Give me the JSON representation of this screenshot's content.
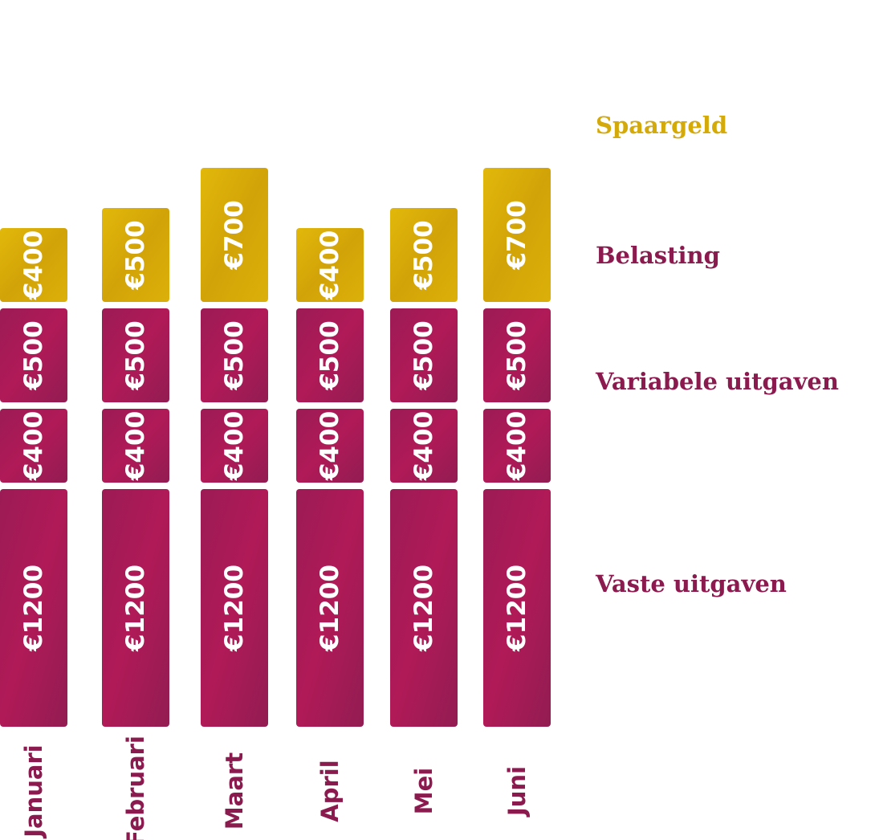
{
  "chart_data": {
    "type": "bar",
    "stacked": true,
    "orientation": "vertical",
    "categories": [
      "Januari",
      "Februari",
      "Maart",
      "April",
      "Mei",
      "Juni"
    ],
    "currency_symbol": "€",
    "series": [
      {
        "name": "Vaste uitgaven",
        "values": [
          1200,
          1200,
          1200,
          1200,
          1200,
          1200
        ],
        "color": "#a01a52"
      },
      {
        "name": "Variabele uitgaven",
        "values": [
          400,
          400,
          400,
          400,
          400,
          400
        ],
        "color": "#a01a52"
      },
      {
        "name": "Belasting",
        "values": [
          500,
          500,
          500,
          500,
          500,
          500
        ],
        "color": "#a01a52"
      },
      {
        "name": "Spaargeld",
        "values": [
          400,
          500,
          700,
          400,
          500,
          700
        ],
        "color": "#d6ad08"
      }
    ],
    "legend_colors": {
      "Spaargeld": "#d4a90a",
      "Belasting": "#8b1a4e",
      "Variabele uitgaven": "#8b1a4e",
      "Vaste uitgaven": "#8b1a4e"
    },
    "legend_position": "right",
    "month_label_color": "#8b1a4e",
    "grid": false,
    "title": "",
    "xlabel": "",
    "ylabel": ""
  }
}
